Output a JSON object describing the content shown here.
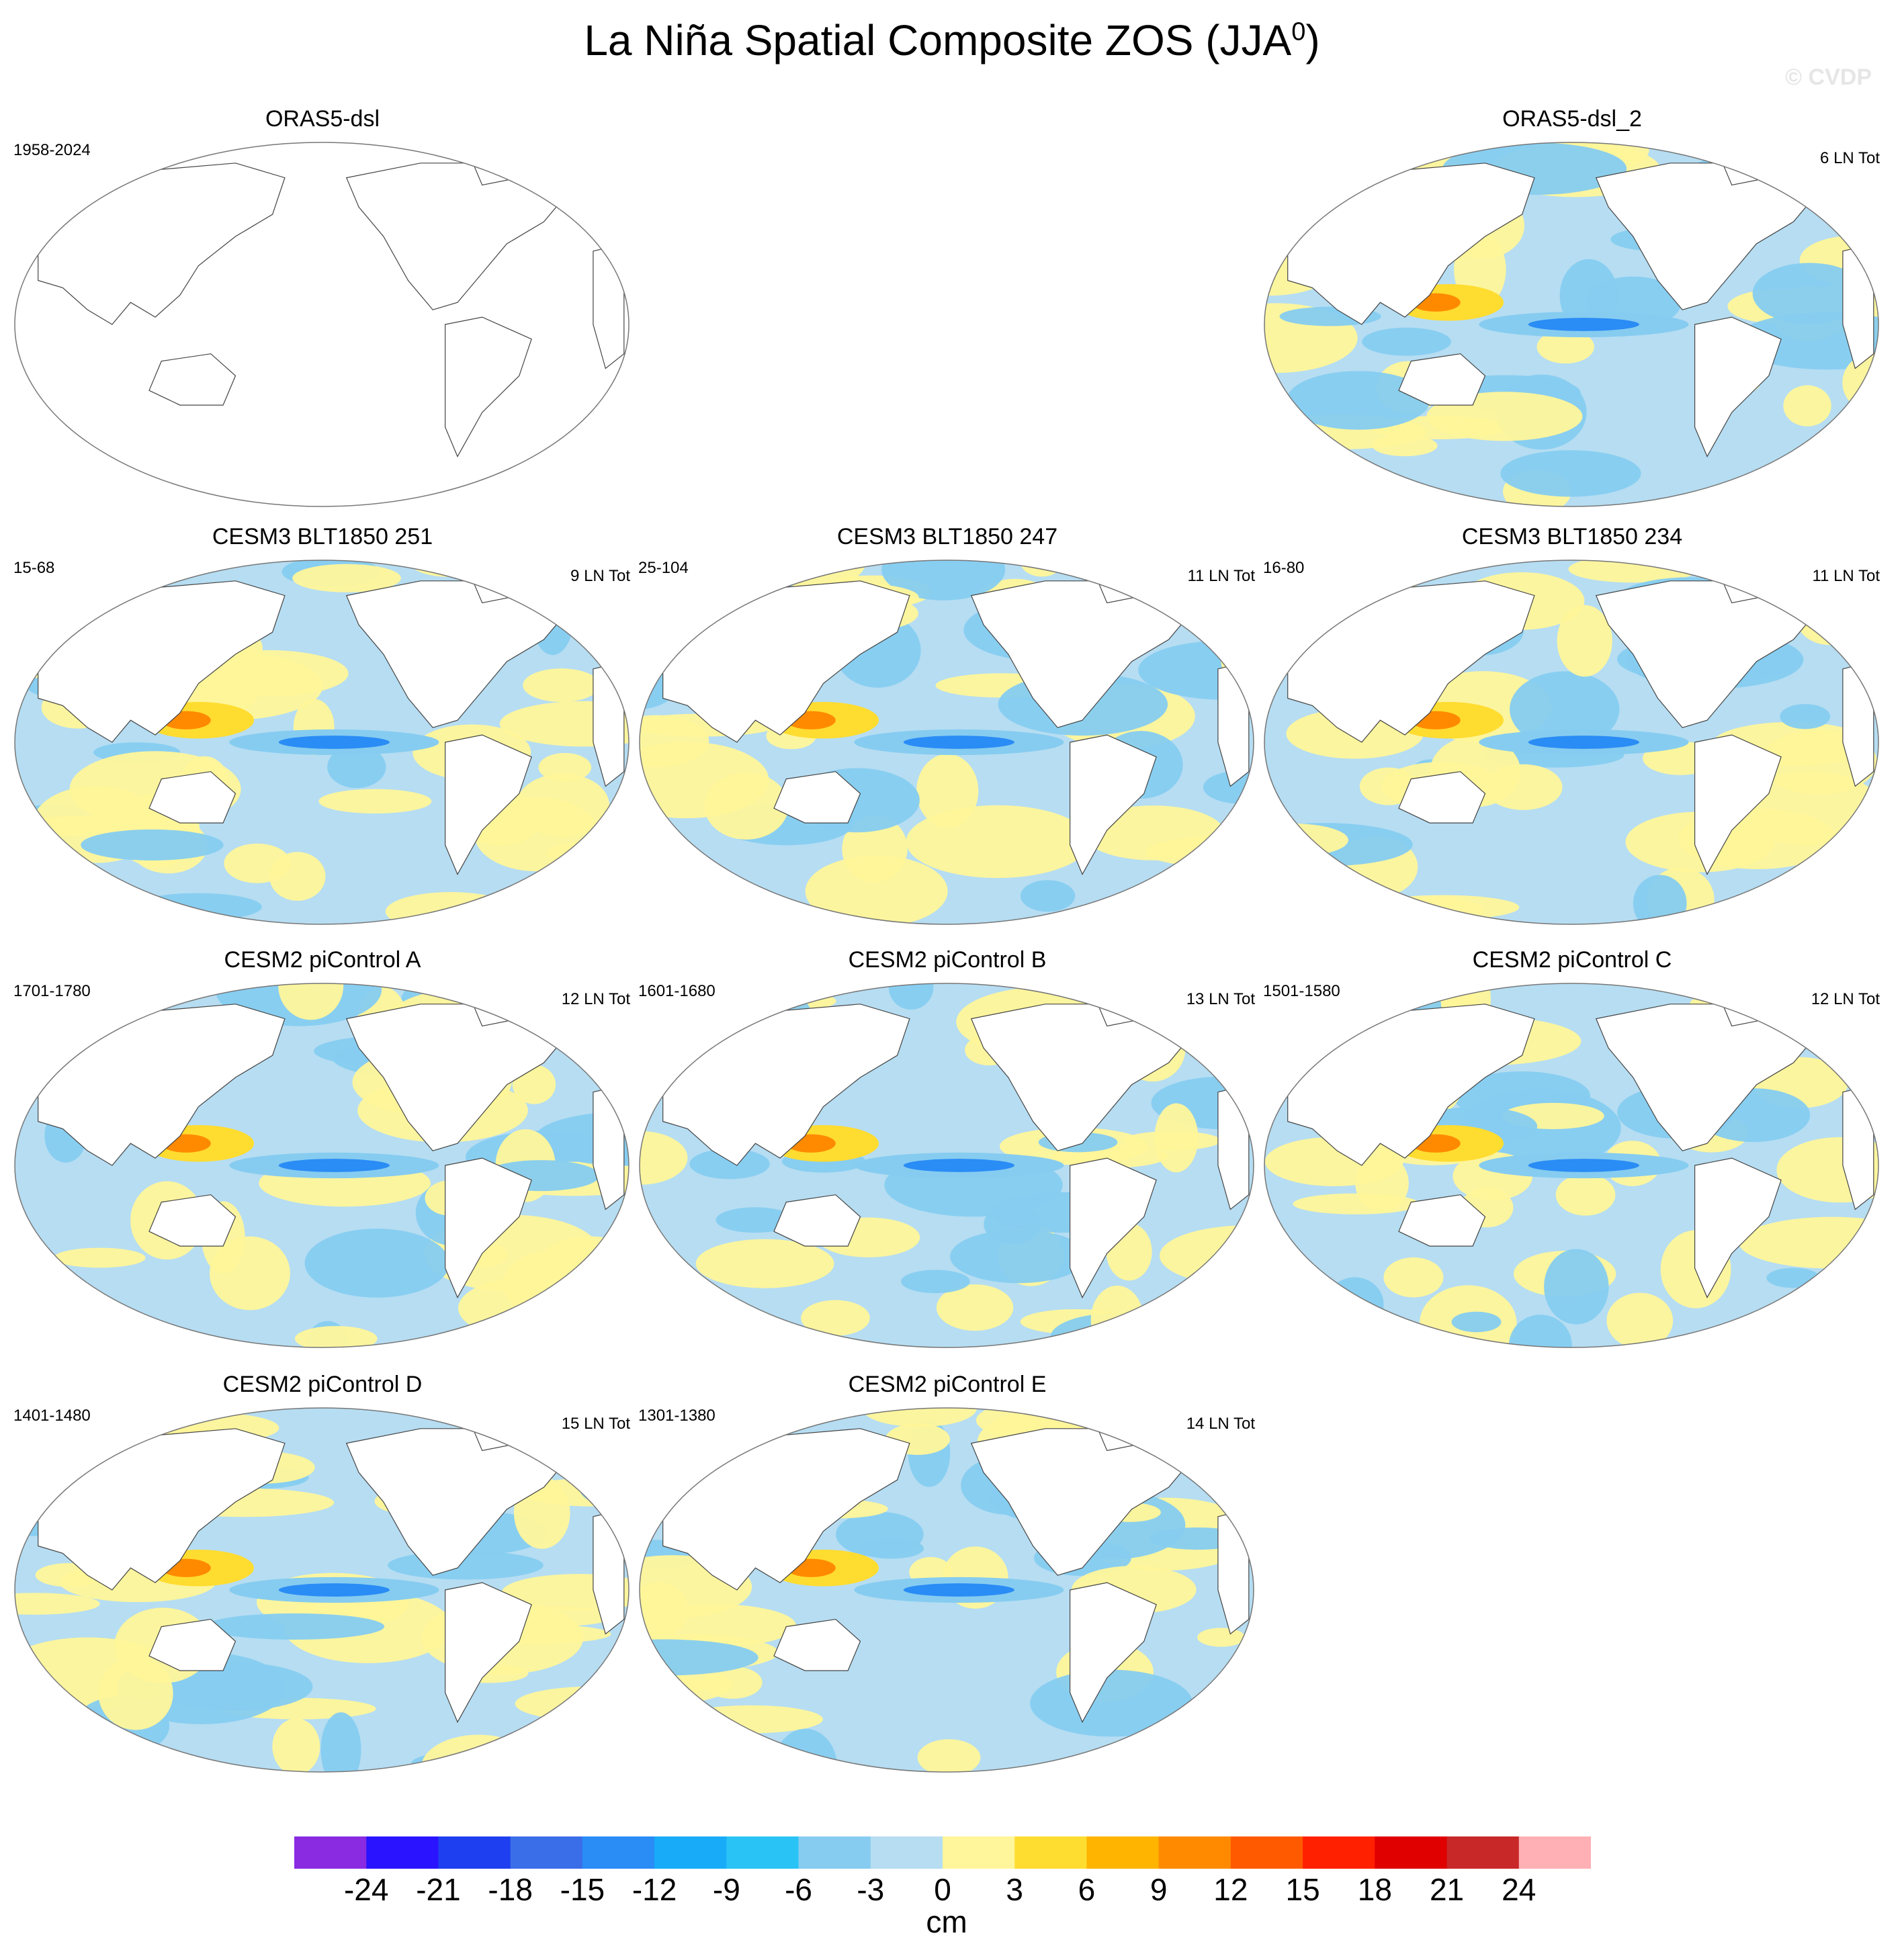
{
  "title": "La Niña Spatial Composite ZOS (JJA",
  "title_sup": "0",
  "title_close": ")",
  "watermark": "© CVDP",
  "units": "cm",
  "colorbar": {
    "labels": [
      "-24",
      "-21",
      "-18",
      "-15",
      "-12",
      "-9",
      "-6",
      "-3",
      "0",
      "3",
      "6",
      "9",
      "12",
      "15",
      "18",
      "21",
      "24"
    ],
    "colors": [
      "#8a2be2",
      "#2a14ff",
      "#1e3ff0",
      "#3a6ee8",
      "#2a8cf5",
      "#18acf8",
      "#2ac3f5",
      "#86ccf0",
      "#b6ddf2",
      "#fff59a",
      "#ffdc30",
      "#ffb400",
      "#ff8a00",
      "#ff5a00",
      "#ff2000",
      "#e00000",
      "#c82828",
      "#ffb0b4"
    ]
  },
  "palette": {
    "neg_weak": "#b6ddf2",
    "neg_mid": "#86ccf0",
    "neg_strong": "#2a8cf5",
    "pos_weak": "#fff59a",
    "pos_mid": "#ffdc30",
    "pos_strong": "#ff8a00",
    "land": "#ffffff"
  },
  "panels": [
    {
      "title": "ORAS5-dsl",
      "left": "1958-2024",
      "right": "",
      "empty": true
    },
    {
      "title": "ORAS5-dsl_2",
      "left": "",
      "right": "6 LN Tot",
      "empty": false
    },
    {
      "title": "CESM3 BLT1850 251",
      "left": "15-68",
      "right": "9 LN Tot",
      "empty": false
    },
    {
      "title": "CESM3 BLT1850 247",
      "left": "25-104",
      "right": "11 LN Tot",
      "empty": false
    },
    {
      "title": "CESM3 BLT1850 234",
      "left": "16-80",
      "right": "11 LN Tot",
      "empty": false
    },
    {
      "title": "CESM2 piControl A",
      "left": "1701-1780",
      "right": "12 LN Tot",
      "empty": false
    },
    {
      "title": "CESM2 piControl B",
      "left": "1601-1680",
      "right": "13 LN Tot",
      "empty": false
    },
    {
      "title": "CESM2 piControl C",
      "left": "1501-1580",
      "right": "12 LN Tot",
      "empty": false
    },
    {
      "title": "CESM2 piControl D",
      "left": "1401-1480",
      "right": "15 LN Tot",
      "empty": false
    },
    {
      "title": "CESM2 piControl E",
      "left": "1301-1380",
      "right": "14 LN Tot",
      "empty": false
    }
  ]
}
